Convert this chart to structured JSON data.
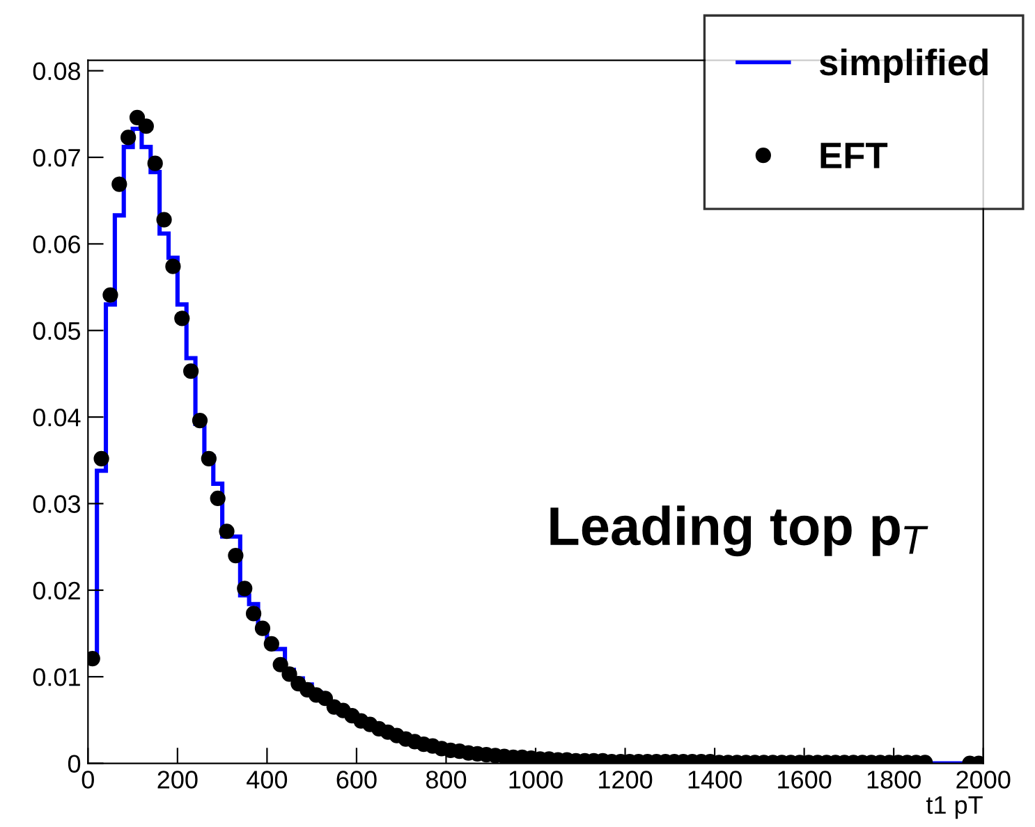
{
  "chart_data": {
    "type": "histogram",
    "xlabel": "t1 pT",
    "annotations": [
      "Leading top p$_{T}$"
    ],
    "bins": [
      0,
      20,
      40,
      60,
      80,
      100,
      120,
      140,
      160,
      180,
      200,
      220,
      240,
      260,
      280,
      300,
      320,
      340,
      360,
      380,
      400,
      420,
      440,
      460,
      480,
      500,
      520,
      540,
      560,
      580,
      600,
      620,
      640,
      660,
      680,
      700,
      720,
      740,
      760,
      780,
      800,
      820,
      840,
      860,
      880,
      900,
      920,
      940,
      960,
      980,
      1000,
      1020,
      1040,
      1060,
      1080,
      1100,
      1120,
      1140,
      1160,
      1180,
      1200,
      1220,
      1240,
      1260,
      1280,
      1300,
      1320,
      1340,
      1360,
      1380,
      1400,
      1420,
      1440,
      1460,
      1480,
      1500,
      1520,
      1540,
      1560,
      1580,
      1600,
      1620,
      1640,
      1660,
      1680,
      1700,
      1720,
      1740,
      1760,
      1780,
      1800,
      1820,
      1840,
      1860,
      1880,
      1900,
      1920,
      1940,
      1960,
      1980,
      2000
    ],
    "series": [
      {
        "name": "simplified",
        "color": "#0000ff",
        "values": [
          0.0125,
          0.0338,
          0.053,
          0.0633,
          0.0712,
          0.0733,
          0.0712,
          0.0683,
          0.0612,
          0.0584,
          0.053,
          0.0468,
          0.0392,
          0.0355,
          0.0323,
          0.0262,
          0.0262,
          0.0194,
          0.0184,
          0.0155,
          0.0138,
          0.0132,
          0.0108,
          0.0098,
          0.0091,
          0.0082,
          0.0073,
          0.0065,
          0.0058,
          0.0053,
          0.005,
          0.0046,
          0.0041,
          0.0036,
          0.0032,
          0.0029,
          0.0025,
          0.0022,
          0.002,
          0.0018,
          0.0016,
          0.0014,
          0.0013,
          0.0011,
          0.001,
          0.0009,
          0.0008,
          0.0007,
          0.0007,
          0.0006,
          0.0005,
          0.0005,
          0.0004,
          0.0004,
          0.0004,
          0.0003,
          0.0003,
          0.0003,
          0.0003,
          0.0002,
          0.0002,
          0.0002,
          0.0002,
          0.0002,
          0.0002,
          0.0002,
          0.0002,
          0.0002,
          0.0002,
          0.0002,
          0.0001,
          0.0001,
          0.0001,
          0.0001,
          0.0001,
          0.0001,
          0.0001,
          0.0001,
          0.0001,
          0.0001,
          0.0001,
          0.0001,
          0.0001,
          0.0001,
          0.0001,
          0.0001,
          0.0001,
          0.0001,
          0.0001,
          0.0001,
          0.0001,
          0.0001,
          0.0001,
          0.0001,
          0,
          0,
          0,
          0,
          0,
          0
        ]
      },
      {
        "name": "EFT",
        "type": "scatter",
        "color": "#000000",
        "x": [
          10,
          30,
          50,
          70,
          90,
          110,
          130,
          150,
          170,
          190,
          210,
          230,
          250,
          270,
          290,
          310,
          330,
          350,
          370,
          390,
          410,
          430,
          450,
          470,
          490,
          510,
          530,
          550,
          570,
          590,
          610,
          630,
          650,
          670,
          690,
          710,
          730,
          750,
          770,
          790,
          810,
          830,
          850,
          870,
          890,
          910,
          930,
          950,
          970,
          990,
          1010,
          1030,
          1050,
          1070,
          1090,
          1110,
          1130,
          1150,
          1170,
          1190,
          1210,
          1230,
          1250,
          1270,
          1290,
          1310,
          1330,
          1350,
          1370,
          1390,
          1410,
          1430,
          1450,
          1470,
          1490,
          1510,
          1530,
          1550,
          1570,
          1590,
          1610,
          1630,
          1650,
          1670,
          1690,
          1710,
          1730,
          1750,
          1770,
          1790,
          1810,
          1830,
          1850,
          1870,
          1890,
          1910,
          1930,
          1950,
          1970,
          1990
        ],
        "values": [
          0.0121,
          0.0352,
          0.0541,
          0.0669,
          0.0723,
          0.0746,
          0.0736,
          0.0693,
          0.0628,
          0.0574,
          0.0514,
          0.0453,
          0.0396,
          0.0352,
          0.0306,
          0.0268,
          0.024,
          0.0202,
          0.0173,
          0.0156,
          0.0138,
          0.0114,
          0.0103,
          0.0092,
          0.0085,
          0.0079,
          0.0075,
          0.0065,
          0.0061,
          0.0055,
          0.0049,
          0.0045,
          0.004,
          0.0036,
          0.0032,
          0.0028,
          0.0025,
          0.0022,
          0.002,
          0.0017,
          0.0015,
          0.0014,
          0.0012,
          0.0011,
          0.001,
          0.0009,
          0.0008,
          0.0007,
          0.0007,
          0.0006,
          0.0005,
          0.0005,
          0.0004,
          0.0004,
          0.0003,
          0.0003,
          0.0003,
          0.0003,
          0.0002,
          0.0002,
          0.0002,
          0.0002,
          0.0002,
          0.0002,
          0.0002,
          0.0002,
          0.0002,
          0.0002,
          0.0002,
          0.0002,
          0.0001,
          0.0001,
          0.0001,
          0.0001,
          0.0001,
          0.0001,
          0.0001,
          0.0001,
          0.0001,
          0.0001,
          0.0001,
          0.0001,
          0.0001,
          0.0001,
          0.0001,
          0.0001,
          0.0001,
          0.0001,
          0.0001,
          0.0001,
          0.0001,
          0.0001,
          0.0001,
          0.0001,
          null,
          null,
          null,
          null,
          0,
          0
        ]
      }
    ],
    "xlim": [
      0,
      2000
    ],
    "ylim": [
      0,
      0.0812
    ],
    "xticks": [
      0,
      200,
      400,
      600,
      800,
      1000,
      1200,
      1400,
      1600,
      1800,
      2000
    ],
    "yticks": [
      0,
      0.01,
      0.02,
      0.03,
      0.04,
      0.05,
      0.06,
      0.07,
      0.08
    ],
    "marker": "circle",
    "grid": false,
    "legend": "top right"
  }
}
